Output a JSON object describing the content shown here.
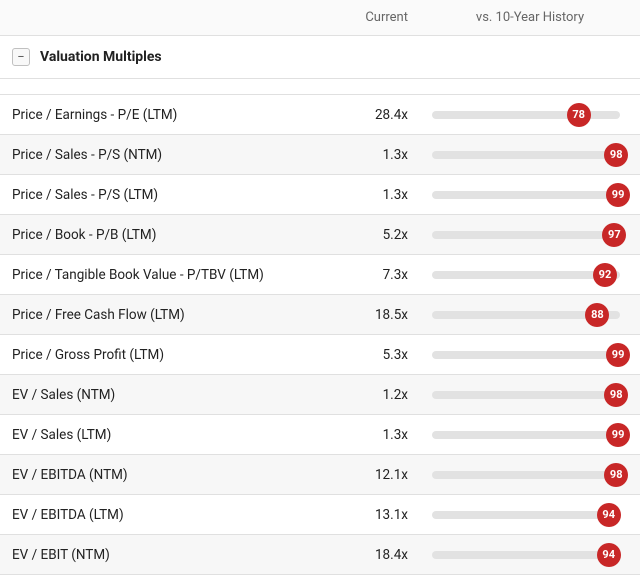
{
  "header": {
    "current": "Current",
    "history": "vs. 10-Year History"
  },
  "section": {
    "title": "Valuation Multiples"
  },
  "badge_color": "#c82727",
  "rows": [
    {
      "label": "Price / Earnings - P/E (LTM)",
      "current": "28.4x",
      "pct": 78
    },
    {
      "label": "Price / Sales - P/S (NTM)",
      "current": "1.3x",
      "pct": 98
    },
    {
      "label": "Price / Sales - P/S (LTM)",
      "current": "1.3x",
      "pct": 99
    },
    {
      "label": "Price / Book - P/B (LTM)",
      "current": "5.2x",
      "pct": 97
    },
    {
      "label": "Price / Tangible Book Value - P/TBV (LTM)",
      "current": "7.3x",
      "pct": 92
    },
    {
      "label": "Price / Free Cash Flow (LTM)",
      "current": "18.5x",
      "pct": 88
    },
    {
      "label": "Price / Gross Profit (LTM)",
      "current": "5.3x",
      "pct": 99
    },
    {
      "label": "EV / Sales (NTM)",
      "current": "1.2x",
      "pct": 98
    },
    {
      "label": "EV / Sales (LTM)",
      "current": "1.3x",
      "pct": 99
    },
    {
      "label": "EV / EBITDA (NTM)",
      "current": "12.1x",
      "pct": 98
    },
    {
      "label": "EV / EBITDA (LTM)",
      "current": "13.1x",
      "pct": 94
    },
    {
      "label": "EV / EBIT (NTM)",
      "current": "18.4x",
      "pct": 94
    }
  ]
}
